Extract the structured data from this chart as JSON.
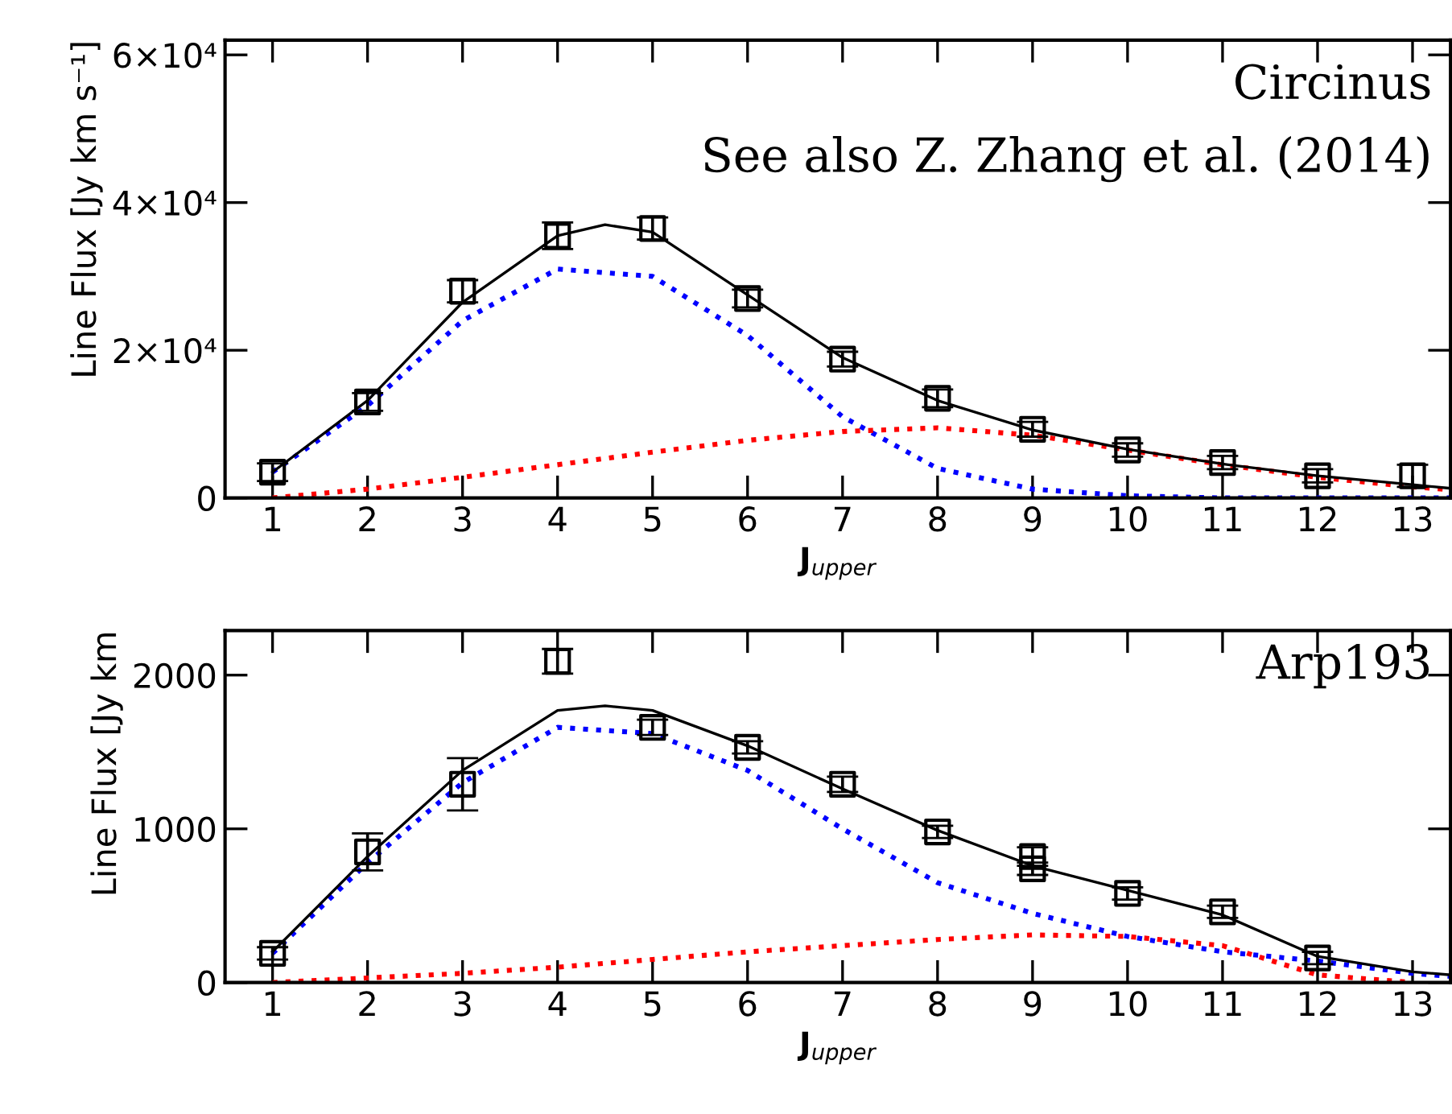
{
  "chart_data": [
    {
      "type": "line",
      "ylabel": "Line Flux [Jy km s⁻¹]",
      "xlabel": "J$_{upper}$",
      "annotations": [
        "Circinus",
        "See also Z. Zhang et al. (2014)"
      ],
      "xlim": [
        0.5,
        13.4
      ],
      "xticks": [
        1,
        2,
        3,
        4,
        5,
        6,
        7,
        8,
        9,
        10,
        11,
        12,
        13
      ],
      "ylim": [
        0,
        62000
      ],
      "yticks": [
        {
          "value": 0,
          "label": "0"
        },
        {
          "value": 20000,
          "label": "2×10⁴"
        },
        {
          "value": 40000,
          "label": "4×10⁴"
        },
        {
          "value": 60000,
          "label": "6×10⁴"
        }
      ],
      "grid": false,
      "legend": false,
      "series": [
        {
          "color": "#0000ff",
          "line_style": "dotted",
          "marker": "none",
          "x": [
            1,
            2,
            3,
            4,
            5,
            6,
            7,
            8,
            9,
            10,
            11,
            12,
            13,
            13.4
          ],
          "values": [
            3500,
            12500,
            24000,
            31000,
            30000,
            22000,
            11000,
            4000,
            1200,
            300,
            0,
            0,
            0,
            0
          ]
        },
        {
          "color": "#ff0000",
          "line_style": "dotted",
          "marker": "none",
          "x": [
            1,
            2,
            3,
            4,
            5,
            6,
            7,
            8,
            9,
            10,
            11,
            12,
            13,
            13.4
          ],
          "values": [
            0,
            1200,
            2800,
            4500,
            6200,
            7800,
            9000,
            9500,
            8500,
            6500,
            4500,
            2800,
            1500,
            1100
          ]
        },
        {
          "color": "#000000",
          "line_style": "solid",
          "marker": "none",
          "x": [
            1,
            2,
            3,
            4,
            4.5,
            5,
            6,
            7,
            8,
            9,
            10,
            11,
            12,
            13,
            13.4
          ],
          "values": [
            3500,
            13200,
            26500,
            35500,
            37000,
            36000,
            27500,
            19000,
            13200,
            9200,
            6600,
            4600,
            3000,
            1800,
            1300
          ]
        },
        {
          "type": "scatter",
          "color": "#000000",
          "marker": "square",
          "x": [
            1,
            2,
            3,
            4,
            5,
            6,
            7,
            8,
            9,
            10,
            11,
            12,
            13
          ],
          "values": [
            3500,
            13000,
            28000,
            35500,
            36500,
            27000,
            18800,
            13500,
            9300,
            6500,
            4800,
            3000,
            3000
          ],
          "errors": [
            1200,
            1200,
            1500,
            1800,
            1500,
            1200,
            1000,
            1200,
            1000,
            900,
            900,
            900,
            1500
          ]
        }
      ]
    },
    {
      "type": "line",
      "ylabel": "Line Flux [Jy km",
      "xlabel": "J$_{upper}$",
      "annotations": [
        "Arp193"
      ],
      "xlim": [
        0.5,
        13.4
      ],
      "xticks": [
        1,
        2,
        3,
        4,
        5,
        6,
        7,
        8,
        9,
        10,
        11,
        12,
        13
      ],
      "ylim": [
        0,
        2290
      ],
      "yticks": [
        0,
        1000,
        2000
      ],
      "grid": false,
      "legend": false,
      "series": [
        {
          "color": "#0000ff",
          "line_style": "dotted",
          "marker": "none",
          "x": [
            1,
            2,
            3,
            4,
            5,
            6,
            7,
            8,
            9,
            10,
            11,
            12,
            13,
            13.4
          ],
          "values": [
            190,
            780,
            1300,
            1660,
            1620,
            1380,
            1000,
            650,
            450,
            300,
            200,
            140,
            60,
            40
          ]
        },
        {
          "color": "#ff0000",
          "line_style": "dotted",
          "marker": "none",
          "x": [
            1,
            2,
            3,
            4,
            5,
            6,
            7,
            8,
            9,
            10,
            11,
            12,
            13
          ],
          "values": [
            0,
            30,
            60,
            100,
            150,
            200,
            240,
            280,
            310,
            300,
            240,
            50,
            0
          ]
        },
        {
          "color": "#000000",
          "line_style": "solid",
          "marker": "none",
          "x": [
            1,
            2,
            3,
            4,
            4.5,
            5,
            6,
            7,
            8,
            9,
            10,
            11,
            12,
            13,
            13.4
          ],
          "values": [
            200,
            820,
            1380,
            1770,
            1800,
            1770,
            1540,
            1260,
            990,
            760,
            600,
            440,
            170,
            70,
            50
          ]
        },
        {
          "type": "scatter",
          "color": "#000000",
          "marker": "square",
          "x": [
            1,
            2,
            3,
            4,
            5,
            6,
            7,
            8,
            9,
            9,
            10,
            11,
            12
          ],
          "values": [
            190,
            850,
            1290,
            2090,
            1660,
            1530,
            1290,
            980,
            820,
            740,
            580,
            460,
            160
          ],
          "errors": [
            40,
            120,
            170,
            80,
            50,
            40,
            50,
            40,
            60,
            40,
            40,
            40,
            40
          ]
        }
      ]
    }
  ]
}
